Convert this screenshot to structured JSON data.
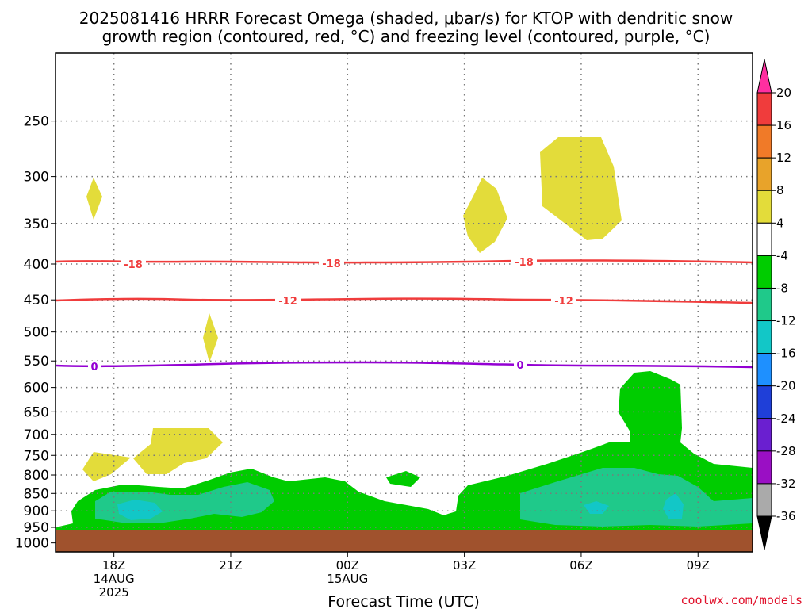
{
  "title_line1": "2025081416 HRRR Forecast Omega (shaded, μbar/s) for KTOP with dendritic snow",
  "title_line2": "growth region (contoured, red, °C) and freezing level (contoured, purple, °C)",
  "credit": "coolwx.com/models",
  "colors": {
    "ground": "#a0522d",
    "red_contour": "#f03c3c",
    "purple_contour": "#9400d3",
    "omega_pos": "#e3dc3a",
    "omega_neg_green": "#00cc00",
    "omega_neg_teal": "#1fc98a",
    "omega_neg_cyan": "#12c7c7"
  },
  "chart_data": {
    "type": "contour",
    "xlabel": "Forecast Time (UTC)",
    "x_ticks": [
      {
        "label": "18Z",
        "sub1": "14AUG",
        "sub2": "2025",
        "hour": 2
      },
      {
        "label": "21Z",
        "sub1": "",
        "sub2": "",
        "hour": 5
      },
      {
        "label": "00Z",
        "sub1": "15AUG",
        "sub2": "",
        "hour": 8
      },
      {
        "label": "03Z",
        "sub1": "",
        "sub2": "",
        "hour": 11
      },
      {
        "label": "06Z",
        "sub1": "",
        "sub2": "",
        "hour": 14
      },
      {
        "label": "09Z",
        "sub1": "",
        "sub2": "",
        "hour": 17
      }
    ],
    "xlim_hours": [
      0.5,
      18.4
    ],
    "y_ticks": [
      "250",
      "300",
      "350",
      "400",
      "450",
      "500",
      "550",
      "600",
      "650",
      "700",
      "750",
      "800",
      "850",
      "900",
      "950",
      "1000"
    ],
    "y_scale": "log-pressure (inverted)",
    "ylim_hPa": [
      1030,
      200
    ],
    "grid": true,
    "contours": [
      {
        "label": "-18",
        "color": "red",
        "level_hPa": 407
      },
      {
        "label": "-12",
        "color": "red",
        "level_hPa": 460
      },
      {
        "label": "0",
        "color": "purple",
        "level_hPa": 570
      }
    ],
    "colorbar": {
      "units": "μbar/s",
      "ticks": [
        "20",
        "16",
        "12",
        "8",
        "4",
        "-4",
        "-8",
        "-12",
        "-16",
        "-20",
        "-24",
        "-28",
        "-32",
        "-36"
      ],
      "colors": [
        "#ff2fa0",
        "#f03c3c",
        "#f07a28",
        "#e8a32a",
        "#e3dc3a",
        "#ffffff",
        "#00cc00",
        "#1fc98a",
        "#12c7c7",
        "#1e90ff",
        "#1f3fd8",
        "#6a1fd0",
        "#9a0fc4",
        "#aaaaaa",
        "#000000"
      ]
    }
  }
}
